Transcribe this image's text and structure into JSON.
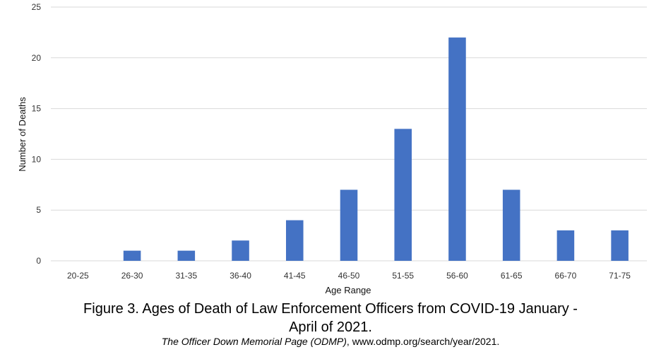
{
  "chart_data": {
    "type": "bar",
    "categories": [
      "20-25",
      "26-30",
      "31-35",
      "36-40",
      "41-45",
      "46-50",
      "51-55",
      "56-60",
      "61-65",
      "66-70",
      "71-75"
    ],
    "values": [
      0,
      1,
      1,
      2,
      4,
      7,
      13,
      22,
      7,
      3,
      3
    ],
    "xlabel": "Age Range",
    "ylabel": "Number of Deaths",
    "ylim": [
      0,
      25
    ],
    "yticks": [
      0,
      5,
      10,
      15,
      20,
      25
    ],
    "grid": true,
    "bar_color": "#4472C4",
    "gridline_color": "#D9D9D9"
  },
  "caption": {
    "title": "Figure 3. Ages of Death of Law Enforcement Officers from COVID-19 January - April of 2021.",
    "source_italic": "The Officer Down Memorial Page (ODMP)",
    "source_rest": ", www.odmp.org/search/year/2021."
  }
}
